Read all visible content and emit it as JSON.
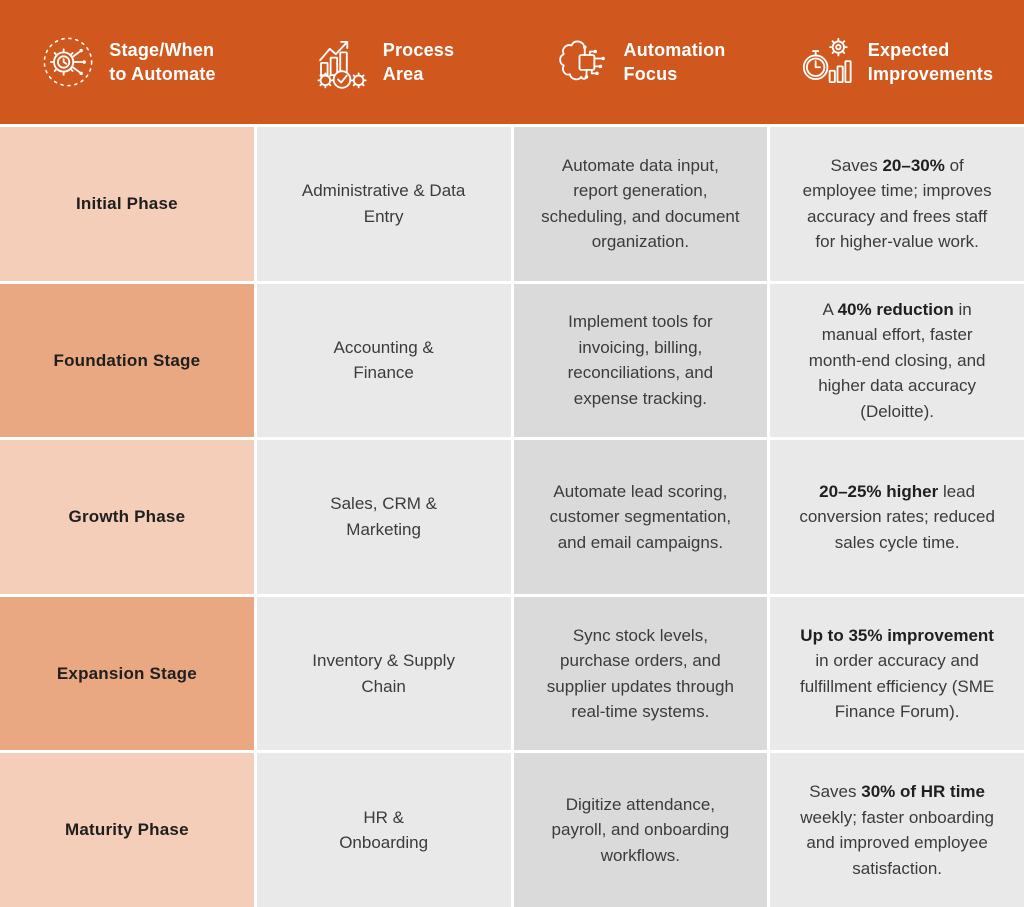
{
  "title": "Business process automation stages table",
  "colors": {
    "header_bg": "#D0581F",
    "header_text": "#FFFFFF",
    "stage_light": "#F5CEB9",
    "stage_dark": "#E9A782",
    "cell_light": "#E9E9E9",
    "cell_dark": "#DADADA",
    "gap": "#FFFFFF",
    "text_heading": "#1F1F1F",
    "text_body": "#3B3B3B"
  },
  "header": {
    "columns": [
      {
        "label": "Stage/When\nto Automate",
        "icon": "automation-stage-icon"
      },
      {
        "label": "Process\nArea",
        "icon": "process-area-icon"
      },
      {
        "label": "Automation\nFocus",
        "icon": "automation-focus-icon"
      },
      {
        "label": "Expected\nImprovements",
        "icon": "expected-improvements-icon"
      }
    ]
  },
  "rows": [
    {
      "stage": "Initial Phase",
      "stage_shade": "light",
      "process_area": "Administrative & Data\nEntry",
      "automation_focus": "Automate data input, report generation, scheduling, and document organization.",
      "expected_improvements": [
        {
          "text": "Saves ",
          "bold": false
        },
        {
          "text": "20–30%",
          "bold": true
        },
        {
          "text": " of employee time; improves accuracy and frees staff for higher-value work.",
          "bold": false
        }
      ]
    },
    {
      "stage": "Foundation Stage",
      "stage_shade": "dark",
      "process_area": "Accounting &\nFinance",
      "automation_focus": "Implement tools for invoicing, billing, reconciliations, and expense tracking.",
      "expected_improvements": [
        {
          "text": "A ",
          "bold": false
        },
        {
          "text": "40% reduction",
          "bold": true
        },
        {
          "text": " in manual effort, faster month-end closing, and higher data accuracy (Deloitte).",
          "bold": false
        }
      ]
    },
    {
      "stage": "Growth Phase",
      "stage_shade": "light",
      "process_area": "Sales, CRM &\nMarketing",
      "automation_focus": "Automate lead scoring, customer segmentation, and email campaigns.",
      "expected_improvements": [
        {
          "text": "20–25% higher",
          "bold": true
        },
        {
          "text": " lead conversion rates; reduced sales cycle time.",
          "bold": false
        }
      ]
    },
    {
      "stage": "Expansion Stage",
      "stage_shade": "dark",
      "process_area": "Inventory & Supply\nChain",
      "automation_focus": "Sync stock levels, purchase orders, and supplier updates through real-time systems.",
      "expected_improvements": [
        {
          "text": "Up to 35% improvement",
          "bold": true
        },
        {
          "text": " in order accuracy and fulfillment efficiency (SME Finance Forum).",
          "bold": false
        }
      ]
    },
    {
      "stage": "Maturity Phase",
      "stage_shade": "light",
      "process_area": "HR &\nOnboarding",
      "automation_focus": "Digitize attendance, payroll, and onboarding workflows.",
      "expected_improvements": [
        {
          "text": "Saves ",
          "bold": false
        },
        {
          "text": "30% of HR time",
          "bold": true
        },
        {
          "text": " weekly; faster onboarding and improved employee satisfaction.",
          "bold": false
        }
      ]
    }
  ],
  "chart_data": {
    "type": "table",
    "columns": [
      "Stage/When to Automate",
      "Process Area",
      "Automation Focus",
      "Expected Improvements"
    ],
    "rows": [
      [
        "Initial Phase",
        "Administrative & Data Entry",
        "Automate data input, report generation, scheduling, and document organization.",
        "Saves 20–30% of employee time; improves accuracy and frees staff for higher-value work."
      ],
      [
        "Foundation Stage",
        "Accounting & Finance",
        "Implement tools for invoicing, billing, reconciliations, and expense tracking.",
        "A 40% reduction in manual effort, faster month-end closing, and higher data accuracy (Deloitte)."
      ],
      [
        "Growth Phase",
        "Sales, CRM & Marketing",
        "Automate lead scoring, customer segmentation, and email campaigns.",
        "20–25% higher lead conversion rates; reduced sales cycle time."
      ],
      [
        "Expansion Stage",
        "Inventory & Supply Chain",
        "Sync stock levels, purchase orders, and supplier updates through real-time systems.",
        "Up to 35% improvement in order accuracy and fulfillment efficiency (SME Finance Forum)."
      ],
      [
        "Maturity Phase",
        "HR & Onboarding",
        "Digitize attendance, payroll, and onboarding workflows.",
        "Saves 30% of HR time weekly; faster onboarding and improved employee satisfaction."
      ]
    ]
  }
}
